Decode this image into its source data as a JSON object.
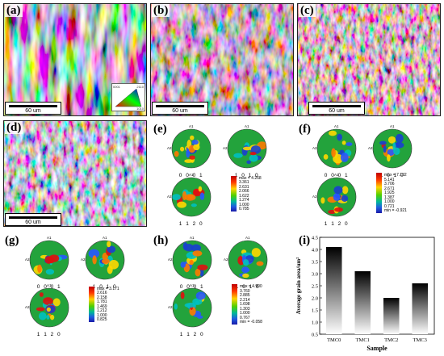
{
  "panels": {
    "a": {
      "label": "(a)",
      "scale": "60 um"
    },
    "b": {
      "label": "(b)",
      "scale": "60 um"
    },
    "c": {
      "label": "(c)",
      "scale": "60 um"
    },
    "d": {
      "label": "(d)",
      "scale": "60 um"
    },
    "e": {
      "label": "(e)"
    },
    "f": {
      "label": "(f)"
    },
    "g": {
      "label": "(g)"
    },
    "h": {
      "label": "(h)"
    },
    "i": {
      "label": "(i)"
    }
  },
  "ipf_key": {
    "c1": "0001",
    "c2": "2110",
    "c3": "1010"
  },
  "pole_figures": {
    "p1": "0 0 0 1",
    "p2": "1 0 1 0",
    "p3": "1 1 2 0",
    "a1": "A1",
    "a2": "A2"
  },
  "legends": {
    "e": [
      "max = 4.268",
      "3.361",
      "2.631",
      "2.066",
      "1.622",
      "1.274",
      "1.000",
      "0.785"
    ],
    "f": [
      "max = 7.132",
      "5.141",
      "3.706",
      "2.671",
      "1.925",
      "1.387",
      "1.000",
      "0.721",
      "min = -0.921"
    ],
    "g": [
      "max = 3.171",
      "2.616",
      "2.158",
      "1.781",
      "1.469",
      "1.212",
      "1.000",
      "0.825"
    ],
    "h": [
      "max = 4.900",
      "3.760",
      "2.885",
      "2.214",
      "1.698",
      "1.303",
      "1.000",
      "0.767",
      "min = -0.058"
    ]
  },
  "colors": {
    "accent": "#000000",
    "bar_top": "#000000",
    "bar_bottom": "#ffffff"
  },
  "chart_data": {
    "type": "bar",
    "categories": [
      "TMC0",
      "TMC1",
      "TMC2",
      "TMC3"
    ],
    "values": [
      4.1,
      3.1,
      2.0,
      2.6
    ],
    "xlabel": "Sample",
    "ylabel": "Average grain area/um²",
    "ylim": [
      0.5,
      4.5
    ],
    "yticks": [
      "0.5",
      "1.0",
      "1.5",
      "2.0",
      "2.5",
      "3.0",
      "3.5",
      "4.0",
      "4.5"
    ],
    "fill": "vertical gradient black to white"
  }
}
